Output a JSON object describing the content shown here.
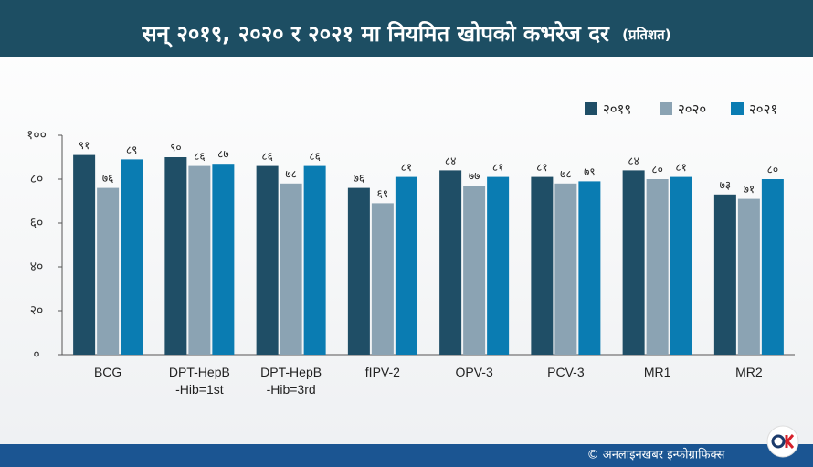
{
  "chart_data": {
    "type": "bar",
    "title": "सन् २०१९, २०२० र २०२१ मा नियमित खोपको कभरेज दर",
    "subtitle": "(प्रतिशत)",
    "credit": "© अनलाइनखबर इन्फोग्राफिक्स",
    "categories": [
      "BCG",
      "DPT-HepB\n-Hib=1st",
      "DPT-HepB\n-Hib=3rd",
      "fIPV-2",
      "OPV-3",
      "PCV-3",
      "MR1",
      "MR2"
    ],
    "series": [
      {
        "name": "२०१९",
        "color": "#1f4e66",
        "values": [
          91,
          90,
          86,
          76,
          84,
          81,
          84,
          73
        ],
        "value_labels": [
          "९१",
          "९०",
          "८६",
          "७६",
          "८४",
          "८१",
          "८४",
          "७३"
        ]
      },
      {
        "name": "२०२०",
        "color": "#8ba3b3",
        "values": [
          76,
          86,
          78,
          69,
          77,
          78,
          80,
          71
        ],
        "value_labels": [
          "७६",
          "८६",
          "७८",
          "६९",
          "७७",
          "७८",
          "८०",
          "७१"
        ]
      },
      {
        "name": "२०२१",
        "color": "#0a7cb2",
        "values": [
          89,
          87,
          86,
          81,
          81,
          79,
          81,
          80
        ],
        "value_labels": [
          "८९",
          "८७",
          "८६",
          "८१",
          "८१",
          "७९",
          "८१",
          "८०"
        ]
      }
    ],
    "ylim": [
      0,
      100
    ],
    "yticks": [
      {
        "value": 0,
        "label": "०"
      },
      {
        "value": 20,
        "label": "२०"
      },
      {
        "value": 40,
        "label": "४०"
      },
      {
        "value": 60,
        "label": "६०"
      },
      {
        "value": 80,
        "label": "८०"
      },
      {
        "value": 100,
        "label": "१००"
      }
    ],
    "grid": false,
    "legend": "top-right"
  }
}
